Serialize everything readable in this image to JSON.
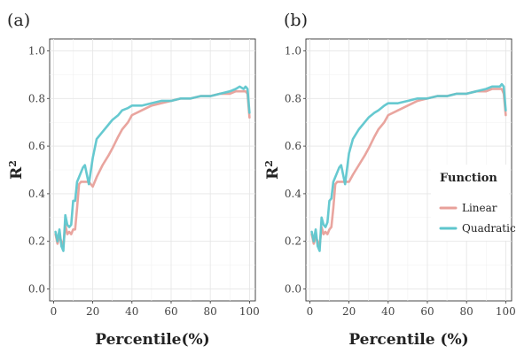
{
  "colors": {
    "linear": "#e8a09a",
    "quadratic": "#5ec6cd",
    "grid": "#e6e6e6",
    "frame": "#333333"
  },
  "chart_data": [
    {
      "type": "line",
      "panel": "(a)",
      "xlabel": "Percentile(%)",
      "ylabel": "R",
      "ylabel_sup": "2",
      "xlim": [
        -2,
        103
      ],
      "ylim": [
        -0.05,
        1.05
      ],
      "xticks": [
        0,
        20,
        40,
        60,
        80,
        100
      ],
      "yticks": [
        0.0,
        0.2,
        0.4,
        0.6,
        0.8,
        1.0
      ],
      "grid": true,
      "legend": null,
      "series": [
        {
          "name": "Linear",
          "color": "#e8a09a",
          "x": [
            1,
            2,
            3,
            4,
            5,
            6,
            7,
            8,
            9,
            10,
            11,
            12,
            13,
            14,
            15,
            16,
            18,
            20,
            22,
            25,
            28,
            30,
            33,
            35,
            38,
            40,
            45,
            50,
            55,
            60,
            65,
            70,
            75,
            80,
            85,
            90,
            93,
            95,
            97,
            98,
            99,
            100
          ],
          "y": [
            0.23,
            0.19,
            0.22,
            0.2,
            0.18,
            0.27,
            0.23,
            0.24,
            0.23,
            0.25,
            0.25,
            0.34,
            0.44,
            0.45,
            0.45,
            0.45,
            0.45,
            0.43,
            0.47,
            0.52,
            0.56,
            0.59,
            0.64,
            0.67,
            0.7,
            0.73,
            0.75,
            0.77,
            0.78,
            0.79,
            0.8,
            0.8,
            0.81,
            0.81,
            0.82,
            0.82,
            0.83,
            0.83,
            0.83,
            0.83,
            0.82,
            0.72
          ]
        },
        {
          "name": "Quadratic",
          "color": "#5ec6cd",
          "x": [
            1,
            2,
            3,
            4,
            5,
            6,
            7,
            8,
            9,
            10,
            11,
            12,
            13,
            14,
            15,
            16,
            18,
            20,
            22,
            25,
            28,
            30,
            33,
            35,
            38,
            40,
            45,
            50,
            55,
            60,
            65,
            70,
            75,
            80,
            85,
            90,
            93,
            95,
            97,
            98,
            99,
            100
          ],
          "y": [
            0.24,
            0.2,
            0.25,
            0.18,
            0.16,
            0.31,
            0.27,
            0.26,
            0.27,
            0.37,
            0.37,
            0.45,
            0.47,
            0.49,
            0.51,
            0.52,
            0.44,
            0.55,
            0.63,
            0.66,
            0.69,
            0.71,
            0.73,
            0.75,
            0.76,
            0.77,
            0.77,
            0.78,
            0.79,
            0.79,
            0.8,
            0.8,
            0.81,
            0.81,
            0.82,
            0.83,
            0.84,
            0.85,
            0.84,
            0.85,
            0.84,
            0.74
          ]
        }
      ]
    },
    {
      "type": "line",
      "panel": "(b)",
      "xlabel": "Percentile (%)",
      "ylabel": "R",
      "ylabel_sup": "2",
      "xlim": [
        -2,
        103
      ],
      "ylim": [
        -0.05,
        1.05
      ],
      "xticks": [
        0,
        20,
        40,
        60,
        80,
        100
      ],
      "yticks": [
        0.0,
        0.2,
        0.4,
        0.6,
        0.8,
        1.0
      ],
      "grid": true,
      "legend": {
        "title": "Function",
        "position": "right",
        "entries": [
          "Linear",
          "Quadratic"
        ]
      },
      "series": [
        {
          "name": "Linear",
          "color": "#e8a09a",
          "x": [
            1,
            2,
            3,
            4,
            5,
            6,
            7,
            8,
            9,
            10,
            11,
            12,
            13,
            14,
            15,
            16,
            18,
            20,
            22,
            25,
            28,
            30,
            33,
            35,
            38,
            40,
            45,
            50,
            55,
            60,
            65,
            70,
            75,
            80,
            85,
            90,
            93,
            95,
            97,
            98,
            99,
            100
          ],
          "y": [
            0.23,
            0.19,
            0.22,
            0.2,
            0.18,
            0.26,
            0.23,
            0.24,
            0.23,
            0.25,
            0.26,
            0.34,
            0.44,
            0.45,
            0.45,
            0.45,
            0.45,
            0.45,
            0.48,
            0.52,
            0.56,
            0.59,
            0.64,
            0.67,
            0.7,
            0.73,
            0.75,
            0.77,
            0.79,
            0.8,
            0.81,
            0.81,
            0.82,
            0.82,
            0.83,
            0.83,
            0.84,
            0.84,
            0.84,
            0.84,
            0.82,
            0.73
          ]
        },
        {
          "name": "Quadratic",
          "color": "#5ec6cd",
          "x": [
            1,
            2,
            3,
            4,
            5,
            6,
            7,
            8,
            9,
            10,
            11,
            12,
            13,
            14,
            15,
            16,
            18,
            20,
            22,
            25,
            28,
            30,
            33,
            35,
            38,
            40,
            45,
            50,
            55,
            60,
            65,
            70,
            75,
            80,
            85,
            90,
            93,
            95,
            97,
            98,
            99,
            100
          ],
          "y": [
            0.24,
            0.2,
            0.25,
            0.18,
            0.16,
            0.3,
            0.27,
            0.26,
            0.28,
            0.37,
            0.38,
            0.45,
            0.47,
            0.49,
            0.51,
            0.52,
            0.44,
            0.57,
            0.63,
            0.67,
            0.7,
            0.72,
            0.74,
            0.75,
            0.77,
            0.78,
            0.78,
            0.79,
            0.8,
            0.8,
            0.81,
            0.81,
            0.82,
            0.82,
            0.83,
            0.84,
            0.85,
            0.85,
            0.85,
            0.86,
            0.85,
            0.75
          ]
        }
      ]
    }
  ]
}
